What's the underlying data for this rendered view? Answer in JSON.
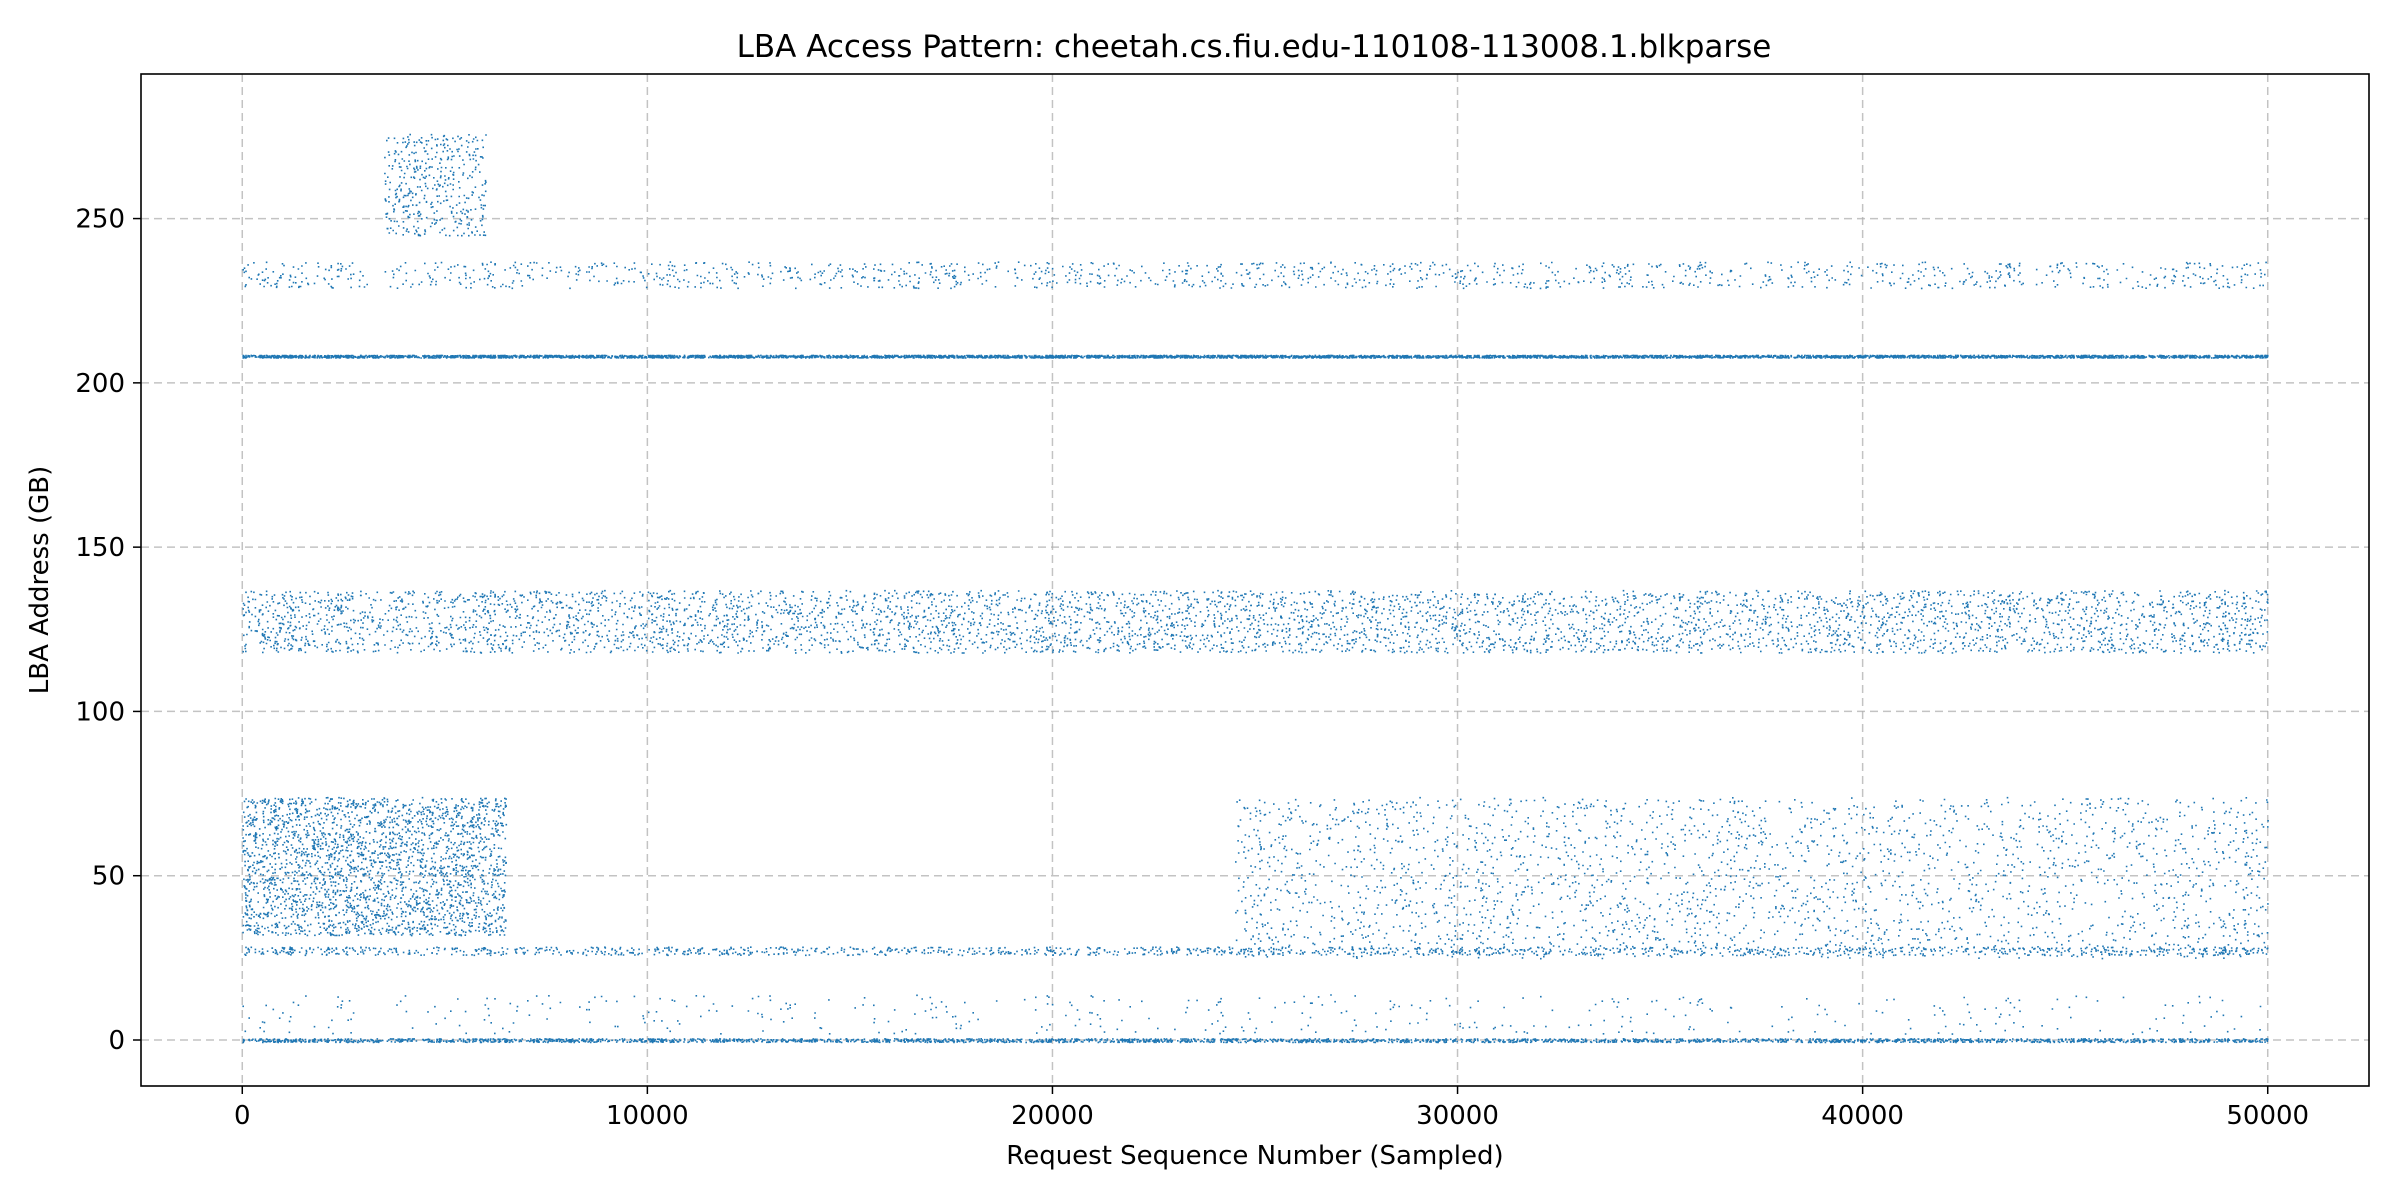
{
  "chart_data": {
    "type": "scatter",
    "title": "LBA Access Pattern: cheetah.cs.fiu.edu-110108-113008.1.blkparse",
    "xlabel": "Request Sequence Number (Sampled)",
    "ylabel": "LBA Address (GB)",
    "xlim": [
      -2500,
      52500
    ],
    "ylim": [
      -14,
      294
    ],
    "xticks": [
      0,
      10000,
      20000,
      30000,
      40000,
      50000
    ],
    "xtick_labels": [
      "0",
      "10000",
      "20000",
      "30000",
      "40000",
      "50000"
    ],
    "yticks": [
      0,
      50,
      100,
      150,
      200,
      250
    ],
    "ytick_labels": [
      "0",
      "50",
      "100",
      "150",
      "200",
      "250"
    ],
    "grid": true,
    "legend": "none",
    "marker": "point",
    "series_color": "#1f77b4",
    "n_samples": 50000,
    "bands": [
      {
        "y_range": [
          207.8,
          208.6
        ],
        "x_range": [
          0,
          50000
        ],
        "density": "very-high"
      },
      {
        "y_range": [
          118,
          137
        ],
        "x_range": [
          0,
          50000
        ],
        "density": "very-high"
      },
      {
        "y_range": [
          229,
          237
        ],
        "x_range": [
          0,
          50000
        ],
        "density": "medium"
      },
      {
        "y_range": [
          -0.5,
          0.6
        ],
        "x_range": [
          0,
          50000
        ],
        "density": "high"
      },
      {
        "y_range": [
          26,
          28.5
        ],
        "x_range": [
          0,
          50000
        ],
        "density": "medium"
      },
      {
        "y_range": [
          32,
          74
        ],
        "x_range": [
          0,
          6500
        ],
        "density": "high"
      },
      {
        "y_range": [
          25,
          74
        ],
        "x_range": [
          24500,
          50000
        ],
        "density": "high"
      },
      {
        "y_range": [
          245,
          276
        ],
        "x_range": [
          3500,
          6000
        ],
        "density": "low"
      },
      {
        "y_range": [
          2,
          14
        ],
        "x_range": [
          0,
          50000
        ],
        "density": "low"
      }
    ]
  }
}
